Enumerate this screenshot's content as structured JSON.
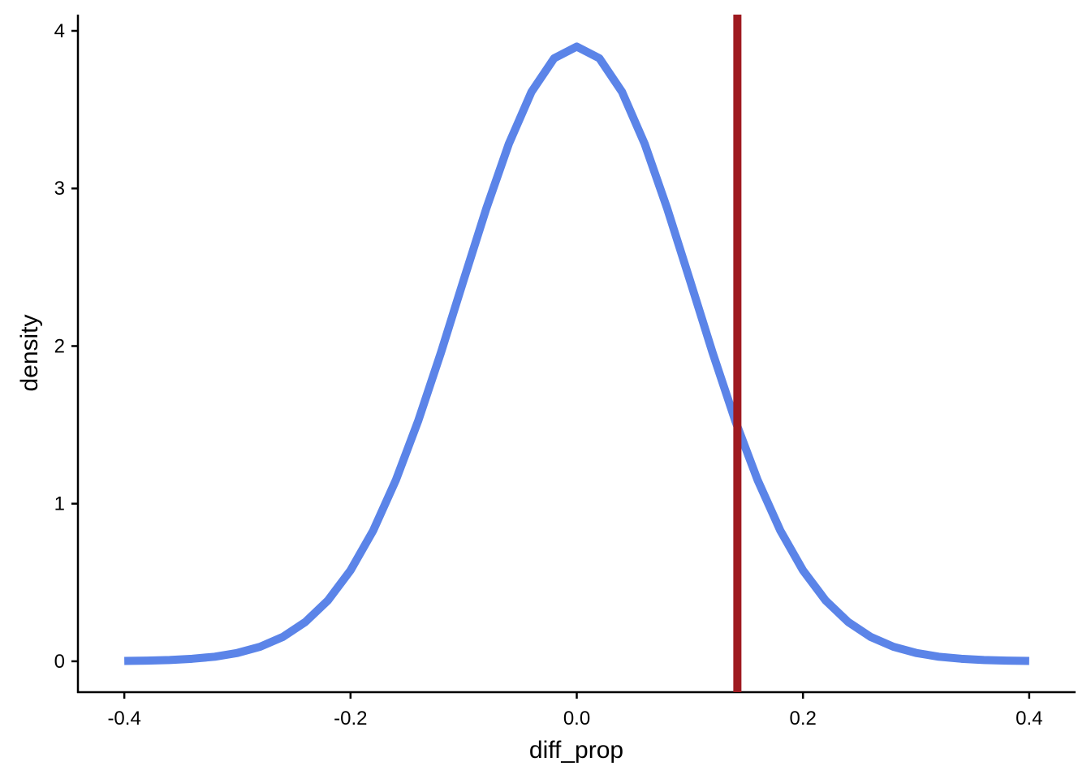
{
  "chart_data": {
    "type": "line",
    "x_label": "diff_prop",
    "y_label": "density",
    "x": [
      -0.4,
      -0.38,
      -0.36,
      -0.34,
      -0.32,
      -0.3,
      -0.28,
      -0.26,
      -0.24,
      -0.22,
      -0.2,
      -0.18,
      -0.16,
      -0.14,
      -0.12,
      -0.1,
      -0.08,
      -0.06,
      -0.04,
      -0.02,
      0,
      0.02,
      0.04,
      0.06,
      0.08,
      0.1,
      0.12,
      0.14,
      0.16,
      0.18,
      0.2,
      0.22,
      0.24,
      0.26,
      0.28,
      0.3,
      0.32,
      0.34,
      0.36,
      0.38,
      0.4
    ],
    "series": [
      {
        "color": "#5b84e8",
        "values": [
          0.002,
          0.004,
          0.008,
          0.016,
          0.029,
          0.053,
          0.092,
          0.154,
          0.249,
          0.386,
          0.577,
          0.829,
          1.148,
          1.529,
          1.96,
          2.419,
          2.872,
          3.284,
          3.613,
          3.826,
          3.9,
          3.826,
          3.613,
          3.284,
          2.872,
          2.419,
          1.96,
          1.529,
          1.148,
          0.829,
          0.577,
          0.386,
          0.249,
          0.154,
          0.092,
          0.053,
          0.029,
          0.016,
          0.008,
          0.004,
          0.002
        ]
      }
    ],
    "vline": {
      "x": 0.142,
      "color": "#9e1a20"
    },
    "xlim": [
      -0.441,
      0.441
    ],
    "ylim": [
      -0.196,
      4.103
    ],
    "xticks": [
      -0.4,
      -0.2,
      {
        "value": 0,
        "label": "0.0"
      },
      0.2,
      0.4
    ],
    "yticks": [
      0,
      1,
      2,
      3,
      4
    ]
  }
}
